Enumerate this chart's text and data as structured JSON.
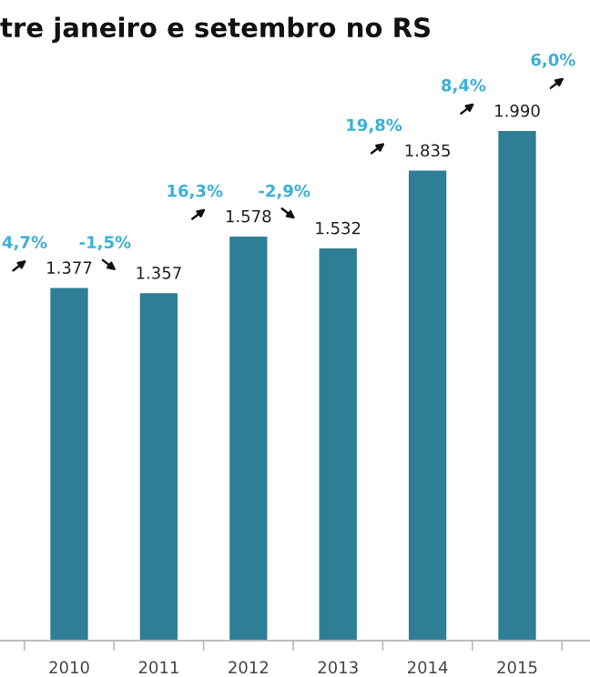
{
  "chart_data": {
    "type": "bar",
    "title": "tre janeiro e setembro no RS",
    "categories": [
      "2010",
      "2011",
      "2012",
      "2013",
      "2014",
      "2015"
    ],
    "values": [
      1377,
      1357,
      1578,
      1532,
      1835,
      1990
    ],
    "value_labels": [
      "1.377",
      "1.357",
      "1.578",
      "1.532",
      "1.835",
      "1.990"
    ],
    "color": "#2e7f96",
    "annotations": [
      "4,7%",
      "-1,5%",
      "16,3%",
      "-2,9%",
      "19,8%",
      "8,4%",
      "6,0%"
    ],
    "grid": false
  }
}
